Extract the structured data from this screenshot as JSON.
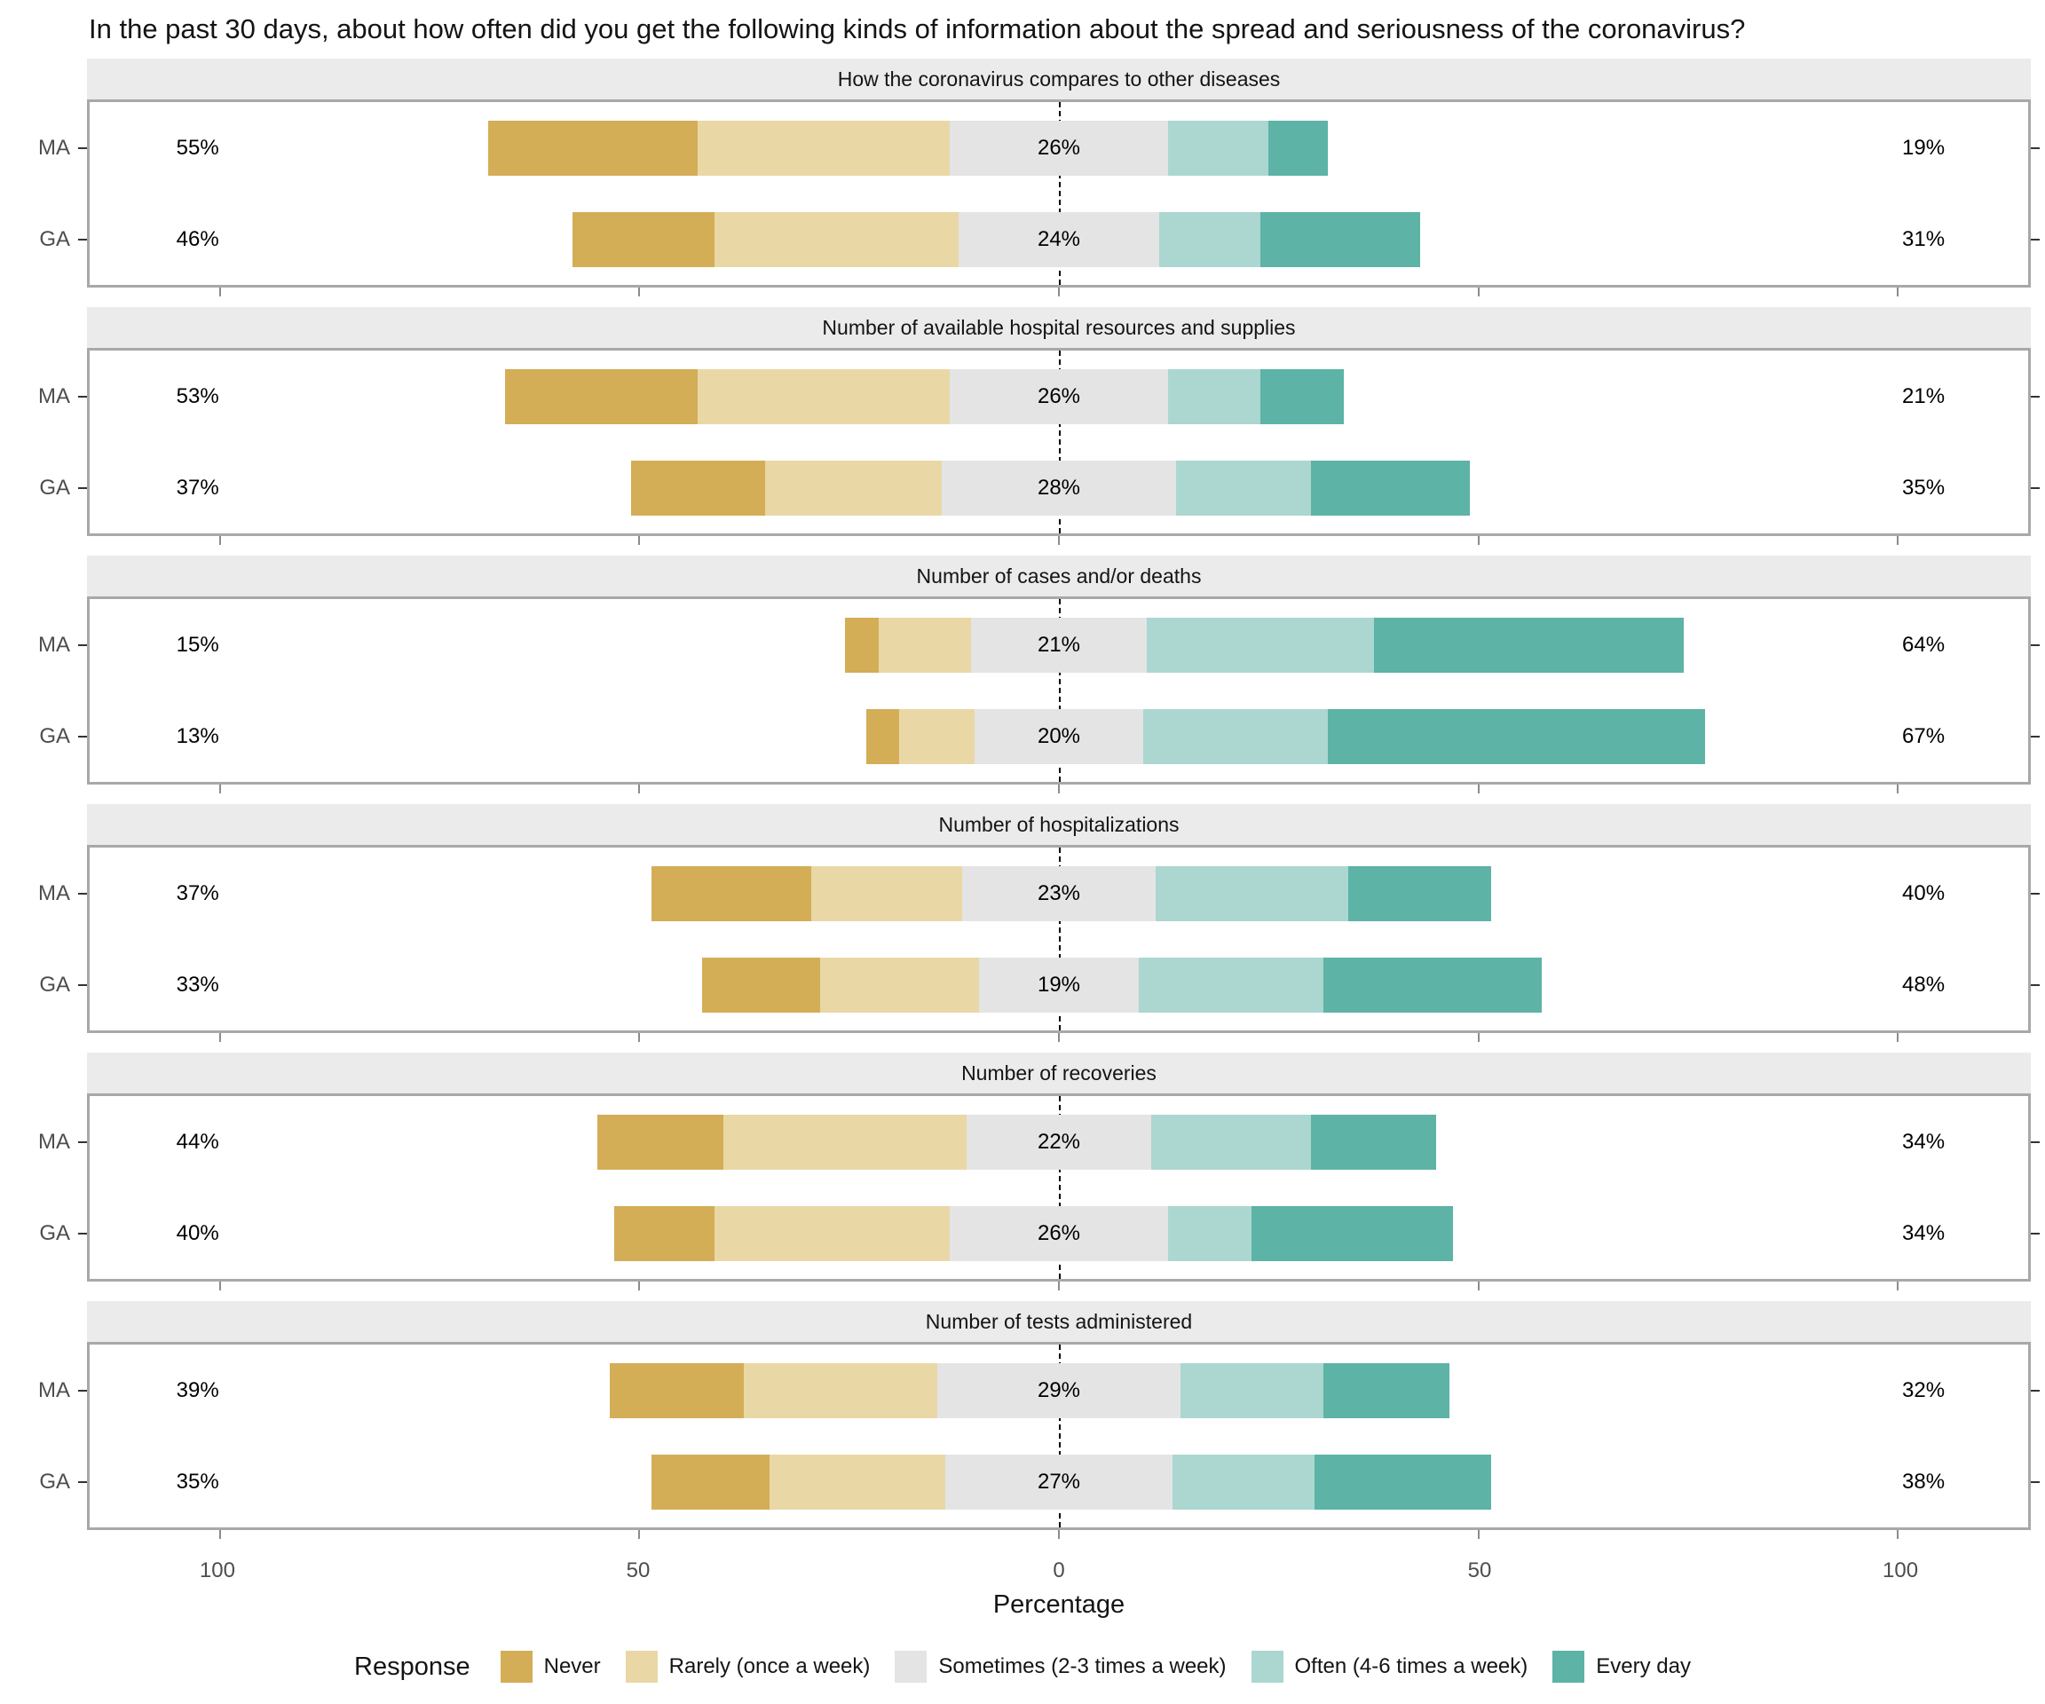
{
  "title": "In the past 30 days, about how often did you get the following kinds of information about the spread and seriousness of the coronavirus?",
  "axis": {
    "xlabel": "Percentage",
    "tick_labels": [
      "100",
      "50",
      "0",
      "50",
      "100"
    ],
    "tick_units": [
      -100,
      -50,
      0,
      50,
      100
    ],
    "units_span": 231
  },
  "legend": {
    "title": "Response",
    "items": [
      {
        "label": "Never",
        "color": "#d4ad57"
      },
      {
        "label": "Rarely (once a week)",
        "color": "#e9d8a6"
      },
      {
        "label": "Sometimes (2-3 times a week)",
        "color": "#e4e4e4"
      },
      {
        "label": "Often (4-6 times a week)",
        "color": "#abd7d0"
      },
      {
        "label": "Every day",
        "color": "#5cb3a6"
      }
    ]
  },
  "colors": {
    "strip_bg": "#ebebeb",
    "panel_border": "#a8a8a8",
    "axis_text": "#4d4d4d",
    "group_label": "#4d4d4d",
    "zero_line": "#000000"
  },
  "chart_data": {
    "type": "bar",
    "subtype": "diverging_stacked_likert",
    "title": "In the past 30 days, about how often did you get the following kinds of information about the spread and seriousness of the coronavirus?",
    "xlabel": "Percentage",
    "xlim": [
      -115.5,
      115.5
    ],
    "legend_position": "bottom",
    "grid": false,
    "response_levels": [
      "Never",
      "Rarely (once a week)",
      "Sometimes (2-3 times a week)",
      "Often (4-6 times a week)",
      "Every day"
    ],
    "groups": [
      "MA",
      "GA"
    ],
    "panels": [
      {
        "title": "How the coronavirus compares to other diseases",
        "rows": [
          {
            "group": "MA",
            "values": [
              25,
              30,
              26,
              12,
              7
            ],
            "left_label": "55%",
            "center_label": "26%",
            "right_label": "19%"
          },
          {
            "group": "GA",
            "values": [
              17,
              29,
              24,
              12,
              19
            ],
            "left_label": "46%",
            "center_label": "24%",
            "right_label": "31%"
          }
        ]
      },
      {
        "title": "Number of available hospital resources and supplies",
        "rows": [
          {
            "group": "MA",
            "values": [
              23,
              30,
              26,
              11,
              10
            ],
            "left_label": "53%",
            "center_label": "26%",
            "right_label": "21%"
          },
          {
            "group": "GA",
            "values": [
              16,
              21,
              28,
              16,
              19
            ],
            "left_label": "37%",
            "center_label": "28%",
            "right_label": "35%"
          }
        ]
      },
      {
        "title": "Number of cases and/or deaths",
        "rows": [
          {
            "group": "MA",
            "values": [
              4,
              11,
              21,
              27,
              37
            ],
            "left_label": "15%",
            "center_label": "21%",
            "right_label": "64%"
          },
          {
            "group": "GA",
            "values": [
              4,
              9,
              20,
              22,
              45
            ],
            "left_label": "13%",
            "center_label": "20%",
            "right_label": "67%"
          }
        ]
      },
      {
        "title": "Number of hospitalizations",
        "rows": [
          {
            "group": "MA",
            "values": [
              19,
              18,
              23,
              23,
              17
            ],
            "left_label": "37%",
            "center_label": "23%",
            "right_label": "40%"
          },
          {
            "group": "GA",
            "values": [
              14,
              19,
              19,
              22,
              26
            ],
            "left_label": "33%",
            "center_label": "19%",
            "right_label": "48%"
          }
        ]
      },
      {
        "title": "Number of recoveries",
        "rows": [
          {
            "group": "MA",
            "values": [
              15,
              29,
              22,
              19,
              15
            ],
            "left_label": "44%",
            "center_label": "22%",
            "right_label": "34%"
          },
          {
            "group": "GA",
            "values": [
              12,
              28,
              26,
              10,
              24
            ],
            "left_label": "40%",
            "center_label": "26%",
            "right_label": "34%"
          }
        ]
      },
      {
        "title": "Number of tests administered",
        "rows": [
          {
            "group": "MA",
            "values": [
              16,
              23,
              29,
              17,
              15
            ],
            "left_label": "39%",
            "center_label": "29%",
            "right_label": "32%"
          },
          {
            "group": "GA",
            "values": [
              14,
              21,
              27,
              17,
              21
            ],
            "left_label": "35%",
            "center_label": "27%",
            "right_label": "38%"
          }
        ]
      }
    ],
    "label_positions": {
      "left_pct": 5.57,
      "center_pct": 50,
      "right_pct": 94.6
    }
  }
}
